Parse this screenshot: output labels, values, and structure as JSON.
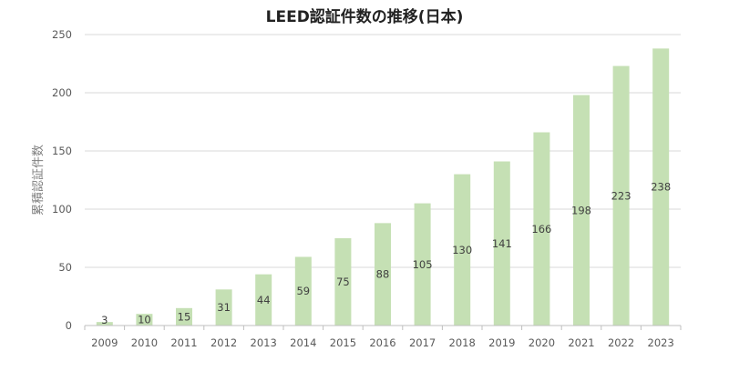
{
  "chart_data": {
    "type": "bar",
    "title": "LEED認証件数の推移(日本)",
    "xlabel": "",
    "ylabel": "累積認証件数",
    "categories": [
      "2009",
      "2010",
      "2011",
      "2012",
      "2013",
      "2014",
      "2015",
      "2016",
      "2017",
      "2018",
      "2019",
      "2020",
      "2021",
      "2022",
      "2023"
    ],
    "values": [
      3,
      10,
      15,
      31,
      44,
      59,
      75,
      88,
      105,
      130,
      141,
      166,
      198,
      223,
      238
    ],
    "ylim": [
      0,
      250
    ],
    "yticks": [
      0,
      50,
      100,
      150,
      200,
      250
    ],
    "grid": true,
    "legend": "none",
    "data_labels": true,
    "colors": {
      "bar": "#c5e0b4",
      "grid": "#d9d9d9",
      "axis": "#bfbfbf"
    }
  }
}
